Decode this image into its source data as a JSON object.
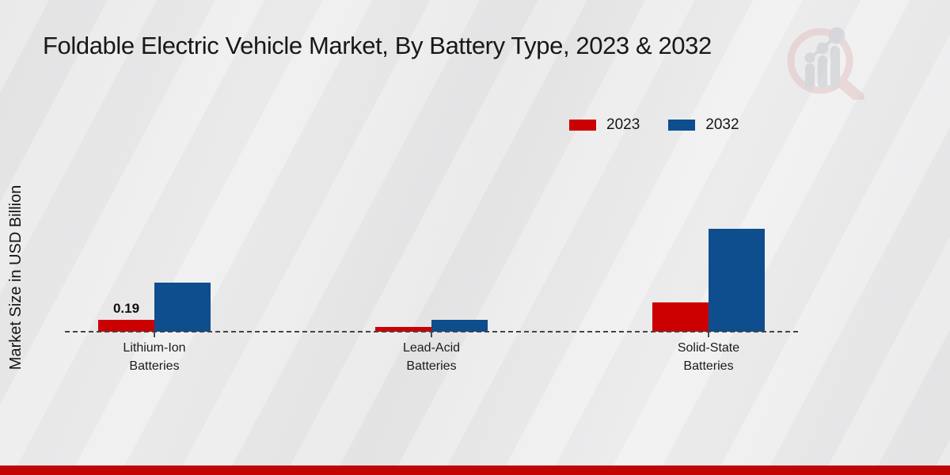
{
  "title": "Foldable Electric Vehicle Market, By Battery Type, 2023 & 2032",
  "y_axis_label": "Market Size in USD Billion",
  "legend": {
    "items": [
      {
        "label": "2023",
        "color": "#cc0000"
      },
      {
        "label": "2032",
        "color": "#0e4d8e"
      }
    ]
  },
  "chart_data": {
    "type": "bar",
    "title": "Foldable Electric Vehicle Market, By Battery Type, 2023 & 2032",
    "xlabel": "",
    "ylabel": "Market Size in USD Billion",
    "categories": [
      "Lithium-Ion\nBatteries",
      "Lead-Acid\nBatteries",
      "Solid-State\nBatteries"
    ],
    "series": [
      {
        "name": "2023",
        "color": "#cc0000",
        "values": [
          0.19,
          0.07,
          0.46
        ],
        "data_labels": [
          "0.19",
          "",
          ""
        ]
      },
      {
        "name": "2032",
        "color": "#0e4d8e",
        "values": [
          0.76,
          0.19,
          1.6
        ],
        "data_labels": [
          "",
          "",
          ""
        ]
      }
    ],
    "ylim": [
      0,
      2.2
    ],
    "grid": false,
    "legend_position": "top-right",
    "baseline_style": "dashed"
  },
  "branding": {
    "watermark": "market-research-future-logo"
  },
  "footer": {
    "accent_color": "#c10505"
  }
}
